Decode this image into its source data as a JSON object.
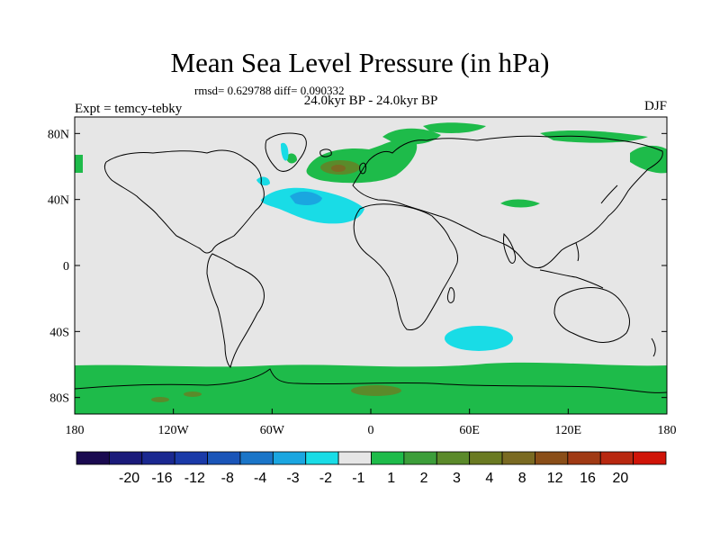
{
  "title": "Mean Sea Level Pressure (in hPa)",
  "stats": "rmsd= 0.629788 diff= 0.090332",
  "period": "24.0kyr BP - 24.0kyr BP",
  "experiment": "Expt = temcy-tebky",
  "season": "DJF",
  "colors": {
    "land_background": "#e6e6e6",
    "coast": "#000000",
    "light_blue": "#19dce6",
    "mid_blue": "#1aa6e0",
    "green": "#1ebb4a",
    "olive": "#5b8a2a",
    "brown": "#7a6a22"
  },
  "chart_data": {
    "type": "heatmap",
    "title": "Mean Sea Level Pressure (in hPa)",
    "x_ticks": [
      "180",
      "120W",
      "60W",
      "0",
      "60E",
      "120E",
      "180"
    ],
    "y_ticks": [
      "80N",
      "40N",
      "0",
      "40S",
      "80S"
    ],
    "colorbar": {
      "colors": [
        "#1a0a50",
        "#1a1a7a",
        "#1a2890",
        "#1a3aa8",
        "#1a55b8",
        "#1a75c8",
        "#1aa6e0",
        "#19dce6",
        "#e6e6e6",
        "#1ebb4a",
        "#3c9e3a",
        "#5b8a2a",
        "#6a7a22",
        "#7a6a22",
        "#8a4e18",
        "#a03a14",
        "#b82810",
        "#d01408"
      ],
      "labels": [
        "-20",
        "-16",
        "-12",
        "-8",
        "-4",
        "-3",
        "-2",
        "-1",
        "1",
        "2",
        "3",
        "4",
        "8",
        "12",
        "16",
        "20"
      ]
    }
  }
}
